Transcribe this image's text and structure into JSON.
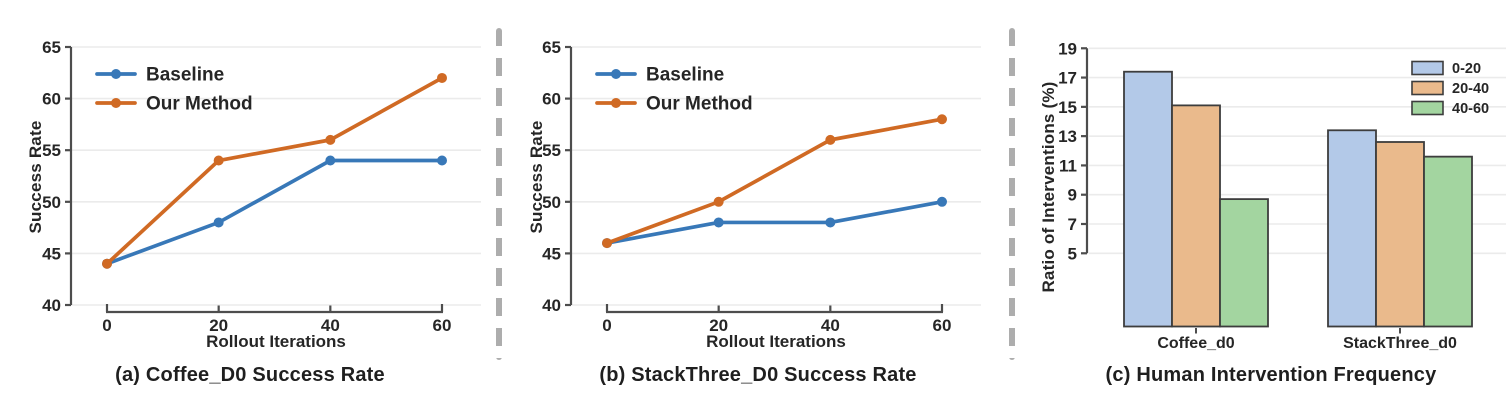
{
  "colors": {
    "baseline_line": "#3878B8",
    "our_method_line": "#D06A24",
    "bar_blue_fill": "#B3C9E8",
    "bar_tan_fill": "#EABA8C",
    "bar_green_fill": "#A3D5A0",
    "bar_border": "#3d3d3d",
    "axis": "#4d4d4d",
    "grid": "#ebebeb",
    "text": "#262626",
    "separator": "#adadad"
  },
  "chart_data": [
    {
      "id": "coffee-success",
      "type": "line",
      "caption": "(a) Coffee_D0 Success Rate",
      "xlabel": "Rollout Iterations",
      "ylabel": "Success Rate",
      "x": [
        0,
        20,
        40,
        60
      ],
      "xticks": [
        "0",
        "20",
        "40",
        "60"
      ],
      "yticks": [
        40,
        45,
        50,
        55,
        60,
        65
      ],
      "ylim": [
        40,
        65
      ],
      "xlim": [
        0,
        60
      ],
      "grid": true,
      "legend_position": "upper left",
      "series": [
        {
          "name": "Baseline",
          "color_key": "baseline_line",
          "values": [
            44,
            48,
            54,
            54
          ]
        },
        {
          "name": "Our Method",
          "color_key": "our_method_line",
          "values": [
            44,
            54,
            56,
            62
          ]
        }
      ]
    },
    {
      "id": "stackthree-success",
      "type": "line",
      "caption": "(b) StackThree_D0 Success Rate",
      "xlabel": "Rollout Iterations",
      "ylabel": "Success Rate",
      "x": [
        0,
        20,
        40,
        60
      ],
      "xticks": [
        "0",
        "20",
        "40",
        "60"
      ],
      "yticks": [
        40,
        45,
        50,
        55,
        60,
        65
      ],
      "ylim": [
        40,
        65
      ],
      "xlim": [
        0,
        60
      ],
      "grid": true,
      "legend_position": "upper left",
      "series": [
        {
          "name": "Baseline",
          "color_key": "baseline_line",
          "values": [
            46,
            48,
            48,
            50
          ]
        },
        {
          "name": "Our Method",
          "color_key": "our_method_line",
          "values": [
            46,
            50,
            56,
            58
          ]
        }
      ]
    },
    {
      "id": "intervention-frequency",
      "type": "bar",
      "caption": "(c) Human Intervention Frequency",
      "ylabel": "Ratio of Interventions (%)",
      "categories": [
        "Coffee_d0",
        "StackThree_d0"
      ],
      "yticks": [
        5,
        7,
        9,
        11,
        13,
        15,
        17,
        19
      ],
      "ybase": 0,
      "grid": true,
      "legend_position": "upper right",
      "series": [
        {
          "name": "0-20",
          "color_key": "bar_blue_fill",
          "values": [
            17.4,
            13.4
          ]
        },
        {
          "name": "20-40",
          "color_key": "bar_tan_fill",
          "values": [
            15.1,
            12.6
          ]
        },
        {
          "name": "40-60",
          "color_key": "bar_green_fill",
          "values": [
            8.7,
            11.6
          ]
        }
      ]
    }
  ]
}
